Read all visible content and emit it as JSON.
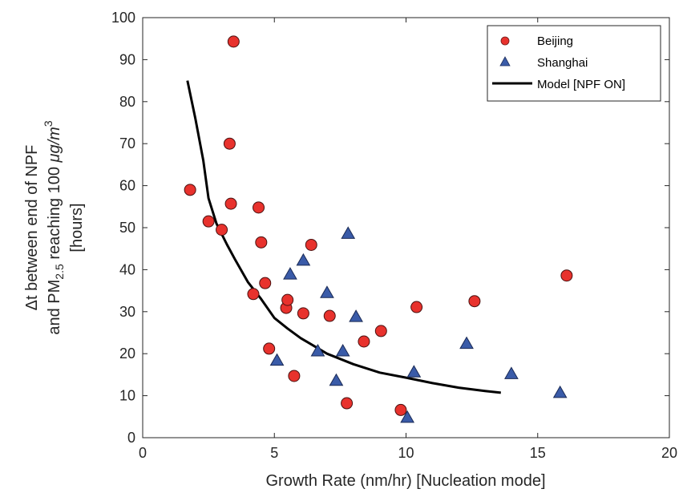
{
  "chart_data": {
    "type": "scatter",
    "xlabel": "Growth Rate (nm/hr) [Nucleation mode]",
    "ylabel_lines": [
      "Δt between end of NPF",
      "and PM",
      "2.5",
      " reaching 100 ",
      "μg/m",
      "3",
      "[hours]"
    ],
    "xlim": [
      0,
      20
    ],
    "ylim": [
      0,
      100
    ],
    "x_ticks": [
      0,
      5,
      10,
      15,
      20
    ],
    "y_ticks": [
      0,
      10,
      20,
      30,
      40,
      50,
      60,
      70,
      80,
      90,
      100
    ],
    "grid": false,
    "legend_position": "top-right",
    "series": [
      {
        "name": "Beijing",
        "marker": "circle",
        "color": "#e8322d",
        "points": [
          [
            1.8,
            59
          ],
          [
            2.5,
            51.5
          ],
          [
            3.0,
            49.5
          ],
          [
            3.3,
            70
          ],
          [
            3.35,
            55.7
          ],
          [
            3.45,
            94.3
          ],
          [
            4.2,
            34.2
          ],
          [
            4.4,
            54.8
          ],
          [
            4.5,
            46.5
          ],
          [
            4.65,
            36.8
          ],
          [
            4.8,
            21.2
          ],
          [
            5.45,
            30.9
          ],
          [
            5.5,
            32.8
          ],
          [
            5.75,
            14.7
          ],
          [
            6.1,
            29.6
          ],
          [
            6.4,
            45.9
          ],
          [
            7.1,
            29
          ],
          [
            7.75,
            8.2
          ],
          [
            8.4,
            22.9
          ],
          [
            9.05,
            25.4
          ],
          [
            9.8,
            6.6
          ],
          [
            10.4,
            31.1
          ],
          [
            12.6,
            32.5
          ],
          [
            16.1,
            38.6
          ]
        ]
      },
      {
        "name": "Shanghai",
        "marker": "triangle",
        "color": "#3a5ba8",
        "points": [
          [
            5.1,
            18.4
          ],
          [
            5.6,
            38.9
          ],
          [
            6.1,
            42.2
          ],
          [
            6.65,
            20.6
          ],
          [
            7.0,
            34.5
          ],
          [
            7.35,
            13.6
          ],
          [
            7.6,
            20.6
          ],
          [
            7.8,
            48.6
          ],
          [
            8.1,
            28.8
          ],
          [
            10.05,
            4.8
          ],
          [
            10.3,
            15.6
          ],
          [
            12.3,
            22.4
          ],
          [
            14.0,
            15.2
          ],
          [
            15.85,
            10.7
          ]
        ]
      },
      {
        "name": "Model [NPF ON]",
        "marker": "line",
        "color": "#000000",
        "points": [
          [
            1.7,
            85
          ],
          [
            2.0,
            76
          ],
          [
            2.3,
            66
          ],
          [
            2.5,
            57
          ],
          [
            2.8,
            51
          ],
          [
            3.2,
            46
          ],
          [
            3.5,
            42.5
          ],
          [
            4.0,
            37
          ],
          [
            4.5,
            33
          ],
          [
            5.0,
            28.5
          ],
          [
            5.5,
            26
          ],
          [
            6.0,
            23.7
          ],
          [
            7.0,
            20
          ],
          [
            8.0,
            17.5
          ],
          [
            9.0,
            15.5
          ],
          [
            10.0,
            14.3
          ],
          [
            11.0,
            13
          ],
          [
            12.0,
            11.9
          ],
          [
            13.0,
            11.1
          ],
          [
            13.6,
            10.7
          ]
        ]
      }
    ]
  }
}
